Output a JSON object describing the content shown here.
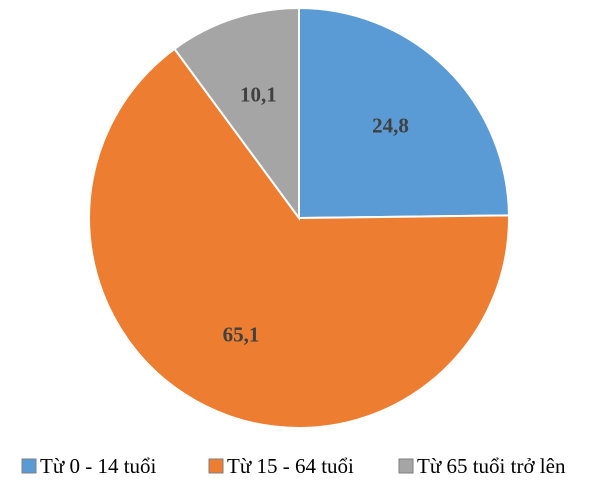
{
  "chart_data": {
    "type": "pie",
    "title": "",
    "start_angle": "12 o'clock, clockwise",
    "legend_position": "bottom",
    "slices": [
      {
        "label": "Từ 0 - 14 tuổi",
        "value": 24.8,
        "value_label": "24,8",
        "color": "#5b9bd5"
      },
      {
        "label": "Từ 15 - 64 tuổi",
        "value": 65.1,
        "value_label": "65,1",
        "color": "#ed7d31"
      },
      {
        "label": "Từ 65 tuổi trở lên",
        "value": 10.1,
        "value_label": "10,1",
        "color": "#a5a5a5"
      }
    ]
  }
}
